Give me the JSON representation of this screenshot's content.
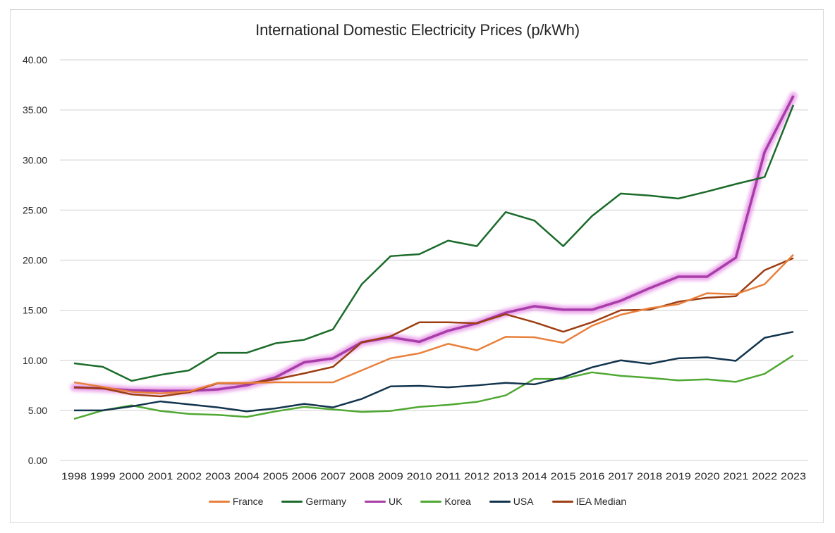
{
  "chart_data": {
    "type": "line",
    "title": "International Domestic Electricity Prices (p/kWh)",
    "xlabel": "",
    "ylabel": "",
    "ylim": [
      0,
      40
    ],
    "yticks": [
      "0.00",
      "5.00",
      "10.00",
      "15.00",
      "20.00",
      "25.00",
      "30.00",
      "35.00",
      "40.00"
    ],
    "ytick_values": [
      0,
      5,
      10,
      15,
      20,
      25,
      30,
      35,
      40
    ],
    "grid": true,
    "legend_position": "bottom",
    "x": [
      "1998",
      "1999",
      "2000",
      "2001",
      "2002",
      "2003",
      "2004",
      "2005",
      "2006",
      "2007",
      "2008",
      "2009",
      "2010",
      "2011",
      "2012",
      "2013",
      "2014",
      "2015",
      "2016",
      "2017",
      "2018",
      "2019",
      "2020",
      "2021",
      "2022",
      "2023"
    ],
    "series": [
      {
        "name": "France",
        "color": "#e8803c",
        "highlight": false,
        "values": [
          7.8,
          7.35,
          6.85,
          6.7,
          6.9,
          7.75,
          7.75,
          7.8,
          7.8,
          7.8,
          9.0,
          10.2,
          10.7,
          11.65,
          11.0,
          12.35,
          12.3,
          11.75,
          13.45,
          14.55,
          15.2,
          15.6,
          16.7,
          16.6,
          17.6,
          20.55
        ]
      },
      {
        "name": "Germany",
        "color": "#1b6b2a",
        "highlight": false,
        "values": [
          9.7,
          9.35,
          7.95,
          8.55,
          9.0,
          10.75,
          10.75,
          11.7,
          12.05,
          13.1,
          17.6,
          20.4,
          20.6,
          21.95,
          21.4,
          24.8,
          23.95,
          21.4,
          24.4,
          26.65,
          26.45,
          26.15,
          26.85,
          27.6,
          28.3,
          35.5
        ]
      },
      {
        "name": "UK",
        "color": "#a83ca8",
        "highlight": true,
        "values": [
          7.3,
          7.2,
          7.0,
          6.95,
          6.95,
          7.1,
          7.5,
          8.3,
          9.8,
          10.2,
          11.8,
          12.3,
          11.85,
          12.95,
          13.7,
          14.75,
          15.4,
          15.05,
          15.05,
          15.95,
          17.2,
          18.35,
          18.35,
          20.25,
          30.8,
          36.4
        ]
      },
      {
        "name": "Korea",
        "color": "#4fa832",
        "highlight": false,
        "values": [
          4.15,
          5.0,
          5.5,
          4.95,
          4.65,
          4.55,
          4.35,
          4.9,
          5.35,
          5.1,
          4.85,
          4.95,
          5.35,
          5.55,
          5.85,
          6.5,
          8.15,
          8.15,
          8.8,
          8.45,
          8.25,
          8.0,
          8.1,
          7.85,
          8.65,
          10.5
        ]
      },
      {
        "name": "USA",
        "color": "#12344d",
        "highlight": false,
        "values": [
          5.0,
          5.0,
          5.4,
          5.9,
          5.6,
          5.3,
          4.9,
          5.2,
          5.65,
          5.3,
          6.15,
          7.4,
          7.45,
          7.3,
          7.5,
          7.75,
          7.6,
          8.3,
          9.3,
          10.0,
          9.65,
          10.2,
          10.3,
          9.95,
          12.25,
          12.85
        ]
      },
      {
        "name": "IEA Median",
        "color": "#9c3d12",
        "highlight": false,
        "values": [
          7.3,
          7.2,
          6.6,
          6.4,
          6.8,
          7.7,
          7.7,
          8.1,
          8.7,
          9.35,
          11.8,
          12.4,
          13.8,
          13.8,
          13.7,
          14.6,
          13.8,
          12.85,
          13.8,
          15.0,
          15.05,
          15.85,
          16.25,
          16.4,
          19.0,
          20.2
        ]
      }
    ]
  },
  "colors": {
    "gridline": "#d9d9d9",
    "text": "#262626",
    "highlight_glow": "#e48ae4"
  }
}
